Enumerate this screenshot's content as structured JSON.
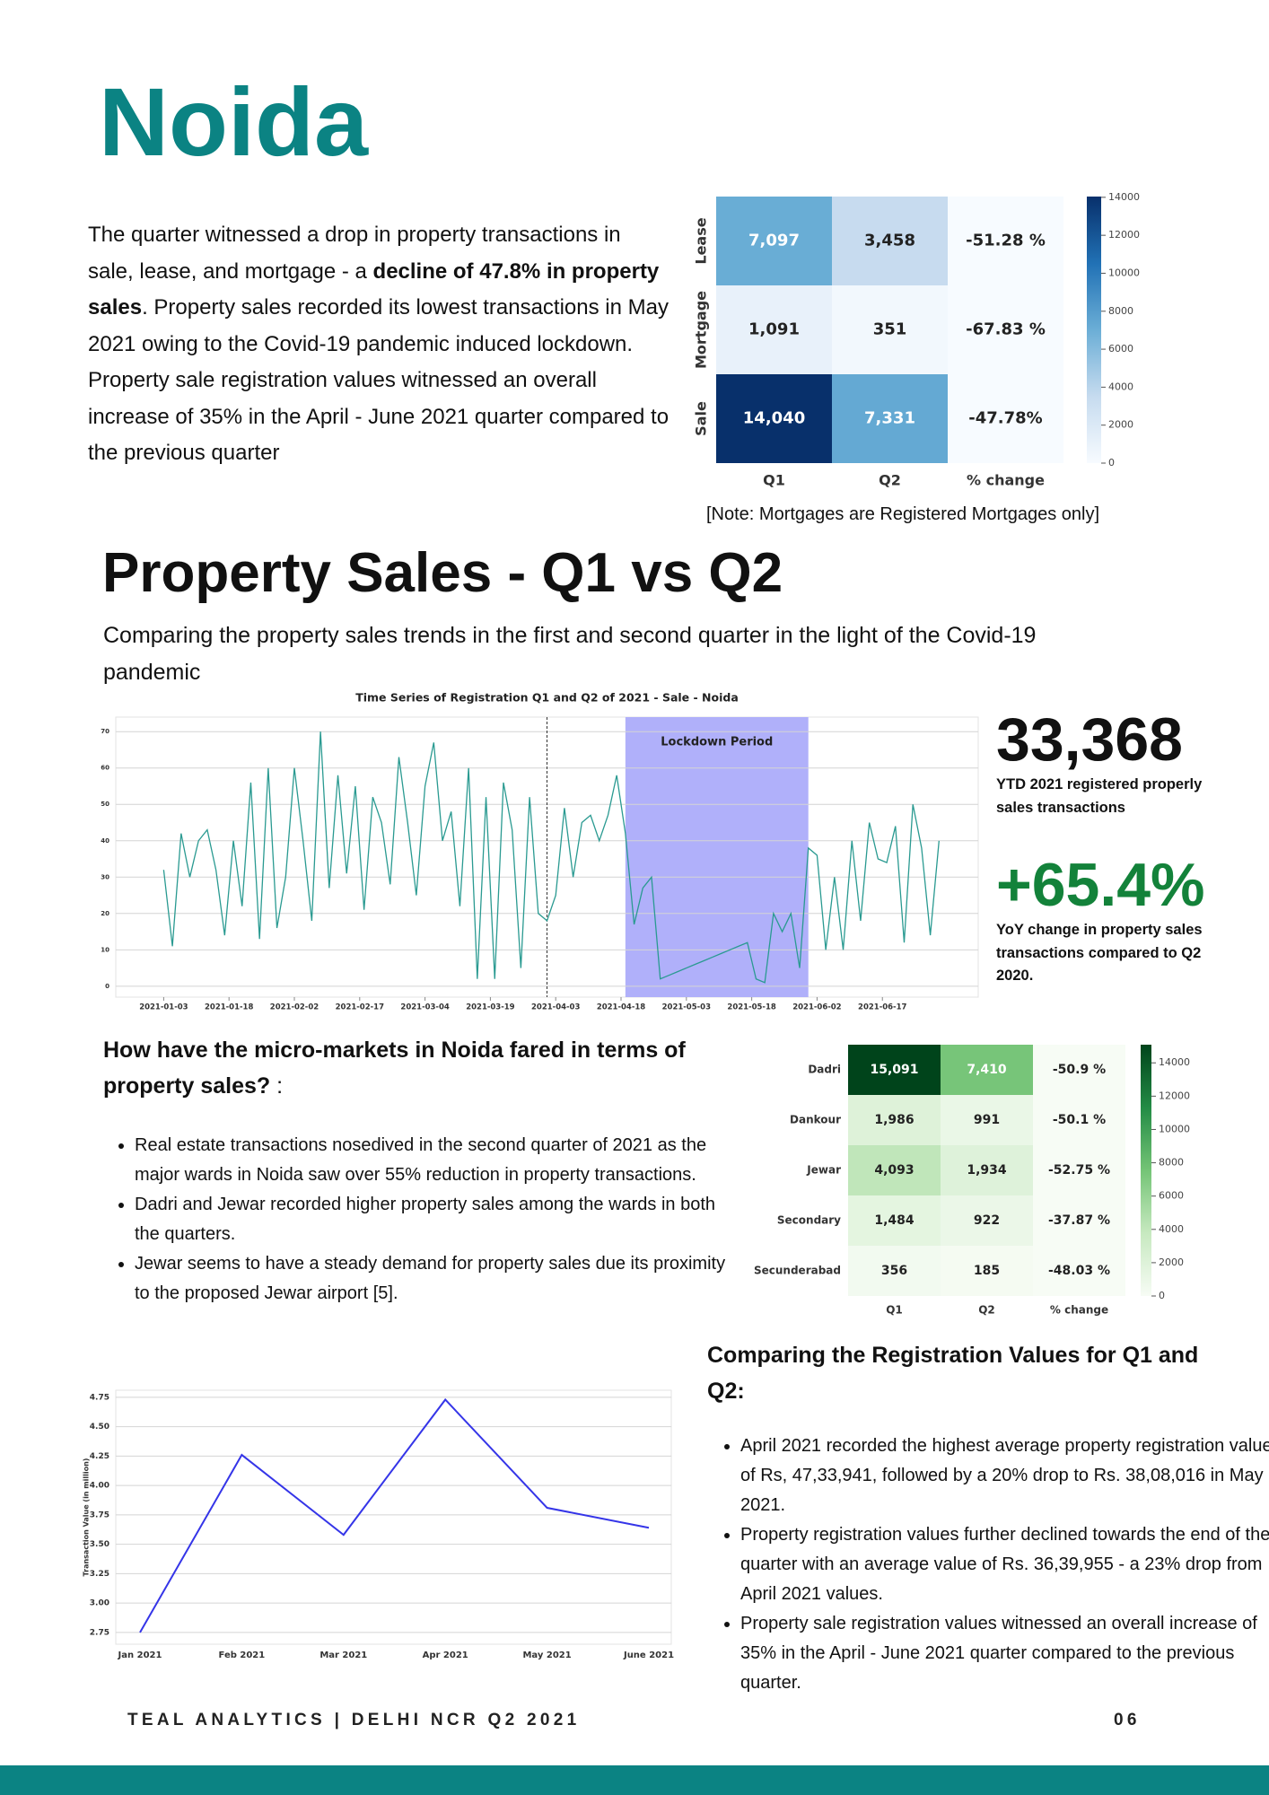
{
  "header": {
    "title": "Noida"
  },
  "intro": {
    "parts": [
      "The quarter witnessed a drop in property transactions in sale, lease, and mortgage - a ",
      "decline of 47.8% in property sales",
      ". Property sales recorded its lowest transactions in May 2021 owing to the Covid-19 pandemic induced lockdown. Property sale registration values witnessed an overall increase of 35% in the April - June 2021 quarter compared to the previous quarter"
    ]
  },
  "note": "[Note: Mortgages are Registered Mortgages only]",
  "section": {
    "title": "Property Sales - Q1 vs Q2",
    "subtitle": "Comparing the property sales  trends in the first and second quarter in the light of the Covid-19 pandemic"
  },
  "stats": [
    {
      "value": "33,368",
      "label": "YTD 2021 registered properly sales transactions"
    },
    {
      "value": "+65.4%",
      "label": "YoY change in property sales transactions compared to Q2 2020."
    }
  ],
  "micro": {
    "heading": [
      "How have the micro-markets in Noida fared in terms of property sales?",
      " :"
    ],
    "bullets": [
      "Real estate transactions nosedived in the second quarter of 2021 as the major wards in Noida saw over 55% reduction in property transactions.",
      "Dadri and Jewar recorded higher property sales among the wards in both the quarters.",
      "Jewar seems to have a steady demand for property sales due its proximity to the proposed Jewar airport [5]."
    ]
  },
  "registration": {
    "heading": "Comparing the Registration Values for Q1 and Q2:",
    "bullets": [
      "April 2021 recorded the highest average property registration value of Rs, 47,33,941, followed by a 20% drop to Rs. 38,08,016 in May 2021.",
      "Property registration values further declined towards the end of the quarter with an average value of Rs. 36,39,955 - a 23% drop from April 2021 values.",
      "Property sale registration values witnessed an overall increase of 35%  in the April - June 2021 quarter compared to the previous quarter."
    ]
  },
  "footer": {
    "left": "TEAL ANALYTICS | DELHI NCR Q2 2021",
    "page": "06"
  },
  "chart_data": [
    {
      "type": "heatmap",
      "rows": [
        "Lease",
        "Mortgage",
        "Sale"
      ],
      "columns": [
        "Q1",
        "Q2",
        "% change"
      ],
      "values": [
        [
          7097,
          3458,
          -51.28
        ],
        [
          1091,
          351,
          -67.83
        ],
        [
          14040,
          7331,
          -47.78
        ]
      ],
      "value_labels": [
        [
          "7,097",
          "3,458",
          "-51.28 %"
        ],
        [
          "1,091",
          "351",
          "-67.83 %"
        ],
        [
          "14,040",
          "7,331",
          "-47.78%"
        ]
      ],
      "colormap": "Blues",
      "clim": [
        0,
        14040
      ],
      "cticks": [
        0,
        2000,
        4000,
        6000,
        8000,
        10000,
        12000,
        14000
      ]
    },
    {
      "type": "line",
      "title": "Time Series of Registration Q1 and Q2 of 2021 - Sale - Noida",
      "color": "#2a9a91",
      "x": [
        "2021-01-03",
        "2021-01-05",
        "2021-01-07",
        "2021-01-09",
        "2021-01-11",
        "2021-01-13",
        "2021-01-15",
        "2021-01-17",
        "2021-01-19",
        "2021-01-21",
        "2021-01-23",
        "2021-01-25",
        "2021-01-27",
        "2021-01-29",
        "2021-01-31",
        "2021-02-02",
        "2021-02-04",
        "2021-02-06",
        "2021-02-08",
        "2021-02-10",
        "2021-02-12",
        "2021-02-14",
        "2021-02-16",
        "2021-02-18",
        "2021-02-20",
        "2021-02-22",
        "2021-02-24",
        "2021-02-26",
        "2021-02-28",
        "2021-03-02",
        "2021-03-04",
        "2021-03-06",
        "2021-03-08",
        "2021-03-10",
        "2021-03-12",
        "2021-03-14",
        "2021-03-16",
        "2021-03-18",
        "2021-03-20",
        "2021-03-22",
        "2021-03-24",
        "2021-03-26",
        "2021-03-28",
        "2021-03-30",
        "2021-04-01",
        "2021-04-03",
        "2021-04-05",
        "2021-04-07",
        "2021-04-09",
        "2021-04-11",
        "2021-04-13",
        "2021-04-15",
        "2021-04-17",
        "2021-04-19",
        "2021-04-21",
        "2021-04-23",
        "2021-04-25",
        "2021-04-27",
        "2021-04-29",
        "2021-05-01",
        "2021-05-03",
        "2021-05-05",
        "2021-05-07",
        "2021-05-09",
        "2021-05-11",
        "2021-05-13",
        "2021-05-15",
        "2021-05-17",
        "2021-05-19",
        "2021-05-21",
        "2021-05-23",
        "2021-05-25",
        "2021-05-27",
        "2021-05-29",
        "2021-05-31",
        "2021-06-02",
        "2021-06-04",
        "2021-06-06",
        "2021-06-08",
        "2021-06-10",
        "2021-06-12",
        "2021-06-14",
        "2021-06-16",
        "2021-06-18",
        "2021-06-20",
        "2021-06-22",
        "2021-06-24",
        "2021-06-26",
        "2021-06-28",
        "2021-06-30"
      ],
      "values": [
        32,
        11,
        42,
        30,
        40,
        43,
        32,
        14,
        40,
        22,
        56,
        13,
        60,
        16,
        30,
        60,
        40,
        18,
        70,
        27,
        58,
        31,
        55,
        21,
        52,
        45,
        28,
        63,
        45,
        25,
        55,
        67,
        40,
        48,
        22,
        60,
        2,
        52,
        2,
        56,
        43,
        5,
        52,
        20,
        18,
        25,
        49,
        30,
        45,
        47,
        40,
        47,
        58,
        42,
        17,
        27,
        30,
        2,
        3,
        4,
        5,
        6,
        7,
        8,
        9,
        10,
        11,
        12,
        2,
        1,
        20,
        15,
        20,
        5,
        38,
        36,
        10,
        30,
        10,
        40,
        18,
        45,
        35,
        34,
        44,
        12,
        50,
        38,
        14,
        40
      ],
      "xlim": [
        "2020-12-23",
        "2021-07-09"
      ],
      "xticks": [
        "2021-01-03",
        "2021-01-18",
        "2021-02-02",
        "2021-02-17",
        "2021-03-04",
        "2021-03-19",
        "2021-04-03",
        "2021-04-18",
        "2021-05-03",
        "2021-05-18",
        "2021-06-02",
        "2021-06-17"
      ],
      "ylim": [
        -3,
        74
      ],
      "yticks": [
        0,
        10,
        20,
        30,
        40,
        50,
        60,
        70
      ],
      "grid": true,
      "vline": "2021-04-01",
      "annotations": [
        {
          "label": "Lockdown Period",
          "x": [
            "2021-04-19",
            "2021-05-31"
          ],
          "color": "#b0b0fa"
        }
      ]
    },
    {
      "type": "heatmap",
      "rows": [
        "Dadri",
        "Dankour",
        "Jewar",
        "Secondary",
        "Secunderabad"
      ],
      "columns": [
        "Q1",
        "Q2",
        "% change"
      ],
      "values": [
        [
          15091,
          7410,
          -50.9
        ],
        [
          1986,
          991,
          -50.1
        ],
        [
          4093,
          1934,
          -52.75
        ],
        [
          1484,
          922,
          -37.87
        ],
        [
          356,
          185,
          -48.03
        ]
      ],
      "value_labels": [
        [
          "15,091",
          "7,410",
          "-50.9 %"
        ],
        [
          "1,986",
          "991",
          "-50.1 %"
        ],
        [
          "4,093",
          "1,934",
          "-52.75 %"
        ],
        [
          "1,484",
          "922",
          "-37.87 %"
        ],
        [
          "356",
          "185",
          "-48.03 %"
        ]
      ],
      "colormap": "Greens",
      "clim": [
        0,
        15091
      ],
      "cticks": [
        0,
        2000,
        4000,
        6000,
        8000,
        10000,
        12000,
        14000
      ]
    },
    {
      "type": "line",
      "color": "#3535e8",
      "y_label": "Transaction Value (in million)",
      "categories": [
        "Jan 2021",
        "Feb 2021",
        "Mar 2021",
        "Apr 2021",
        "May 2021",
        "June 2021"
      ],
      "values": [
        2.75,
        4.26,
        3.58,
        4.73,
        3.81,
        3.64
      ],
      "ylim": [
        2.65,
        4.81
      ],
      "yticks": [
        2.75,
        {
          "value": 3,
          "label": "3.00"
        },
        3.25,
        {
          "value": 3.5,
          "label": "3.50"
        },
        3.75,
        {
          "value": 4,
          "label": "4.00"
        },
        4.25,
        {
          "value": 4.5,
          "label": "4.50"
        },
        4.75
      ],
      "grid": true
    }
  ]
}
